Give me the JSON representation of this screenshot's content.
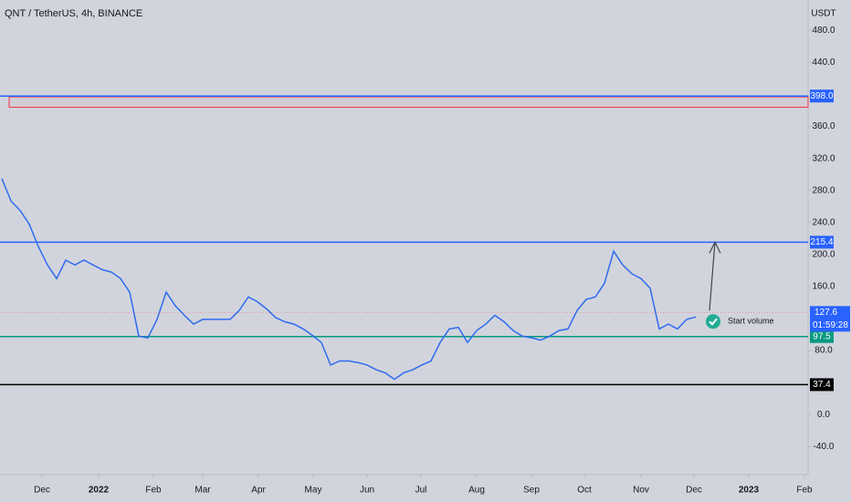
{
  "chart_data": {
    "type": "line",
    "title": "QNT / TetherUS, 4h, BINANCE",
    "y_axis_label": "USDT",
    "color": "#2f6bef",
    "values": [
      295,
      267,
      255,
      238,
      210,
      187,
      170,
      193,
      187,
      193,
      187,
      181,
      178,
      170,
      153,
      98,
      96,
      119,
      153,
      136,
      124,
      113,
      119,
      119,
      119,
      119,
      130,
      147,
      141,
      132,
      121,
      116,
      113,
      107,
      99,
      90,
      62,
      67,
      67,
      65,
      62,
      56,
      52,
      44,
      52,
      56,
      62,
      67,
      90,
      107,
      109,
      90,
      105,
      113,
      124,
      116,
      105,
      98,
      96,
      93,
      98,
      105,
      107,
      130,
      144,
      147,
      164,
      204,
      187,
      176,
      170,
      158,
      107,
      113,
      107,
      119,
      122
    ],
    "xlim": [
      -0.2,
      88.3
    ],
    "ylim": [
      -75,
      518
    ],
    "xticks": [
      {
        "value": 4.4,
        "label": "Dec"
      },
      {
        "value": 10.6,
        "label": "2022"
      },
      {
        "value": 16.6,
        "label": "Feb"
      },
      {
        "value": 22,
        "label": "Mar"
      },
      {
        "value": 28.1,
        "label": "Apr"
      },
      {
        "value": 34.1,
        "label": "May"
      },
      {
        "value": 40,
        "label": "Jun"
      },
      {
        "value": 45.9,
        "label": "Jul"
      },
      {
        "value": 52,
        "label": "Aug"
      },
      {
        "value": 58,
        "label": "Sep"
      },
      {
        "value": 63.8,
        "label": "Oct"
      },
      {
        "value": 70,
        "label": "Nov"
      },
      {
        "value": 75.8,
        "label": "Dec"
      },
      {
        "value": 81.8,
        "label": "2023"
      },
      {
        "value": 87.9,
        "label": "Feb"
      }
    ],
    "yticks": [
      {
        "value": 480,
        "label": "480.0"
      },
      {
        "value": 440,
        "label": "440.0"
      },
      {
        "value": 360,
        "label": "360.0"
      },
      {
        "value": 320,
        "label": "320.0"
      },
      {
        "value": 280,
        "label": "280.0"
      },
      {
        "value": 240,
        "label": "240.0"
      },
      {
        "value": 200,
        "label": "200.0"
      },
      {
        "value": 160,
        "label": "160.0"
      },
      {
        "value": 80,
        "label": "80.0"
      },
      {
        "value": 0,
        "label": "0.0"
      },
      {
        "value": -40,
        "label": "-40.0"
      }
    ],
    "levels": [
      {
        "value": 398,
        "label": "398.0",
        "color": "#2962ff"
      },
      {
        "value": 215.4,
        "label": "215.4",
        "color": "#2962ff"
      },
      {
        "value": 97.5,
        "label": "97.5",
        "color": "#089981"
      },
      {
        "value": 37.4,
        "label": "37.4",
        "color": "#000000"
      }
    ],
    "last_price": {
      "value": 127.6,
      "label": "127.6",
      "countdown": "01:59:28",
      "color": "#2962ff"
    },
    "zone": {
      "top": 397,
      "bottom": 384,
      "start": 0.8,
      "color": "#f23645"
    },
    "arrow": {
      "x": [
        77.5,
        78.1
      ],
      "y": [
        130,
        215.4
      ]
    },
    "annotation": "Start volume"
  }
}
